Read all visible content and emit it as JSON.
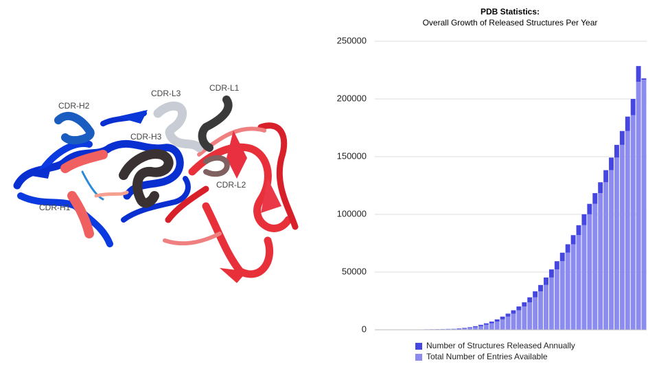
{
  "figure": {
    "labels": [
      "CDR-H2",
      "CDR-L3",
      "CDR-L1",
      "CDR-H3",
      "CDR-L2",
      "CDR-H1"
    ]
  },
  "chart_data": {
    "type": "bar",
    "stacked": true,
    "title": "PDB Statistics:",
    "subtitle": "Overall Growth of Released Structures Per Year",
    "categories": [
      null,
      null,
      null,
      null,
      null,
      null,
      null,
      null,
      null,
      null,
      null,
      null,
      null,
      null,
      null,
      null,
      null,
      null,
      null,
      null,
      null,
      null,
      null,
      null,
      null,
      null,
      null,
      null,
      null,
      null,
      null,
      null,
      null,
      null,
      null,
      null,
      null,
      null,
      null,
      null,
      null,
      null,
      null,
      null,
      null,
      null,
      null,
      null,
      null,
      null
    ],
    "series": [
      {
        "name": "Number of Structures Released Annually",
        "color": "#4646e0",
        "values": [
          10,
          10,
          15,
          20,
          25,
          30,
          35,
          45,
          55,
          65,
          70,
          75,
          80,
          100,
          120,
          300,
          400,
          600,
          900,
          1200,
          1300,
          1500,
          1900,
          2400,
          2600,
          2900,
          3300,
          3600,
          4300,
          5200,
          5500,
          6500,
          7000,
          7100,
          7400,
          7300,
          7900,
          8600,
          9500,
          9000,
          9300,
          9400,
          10500,
          10900,
          11000,
          12000,
          12500,
          14000,
          13700,
          1200
        ]
      },
      {
        "name": "Total Number of Entries Available",
        "color": "#8c8cf0",
        "values": [
          5,
          13,
          30,
          50,
          80,
          110,
          150,
          200,
          260,
          330,
          400,
          470,
          550,
          650,
          750,
          900,
          1200,
          1600,
          2200,
          3100,
          4300,
          5600,
          7100,
          9000,
          11400,
          14000,
          16900,
          20200,
          23800,
          28100,
          33300,
          38800,
          45300,
          52300,
          59400,
          66800,
          74100,
          82000,
          90600,
          100100,
          109100,
          118400,
          127800,
          138300,
          149200,
          160200,
          172200,
          186000,
          214800,
          216600
        ]
      }
    ],
    "stack_order": [
      1,
      0
    ],
    "ylim": [
      0,
      250000
    ],
    "yticks": [
      0,
      50000,
      100000,
      150000,
      200000,
      250000
    ],
    "grid": true,
    "legend": "bottom"
  }
}
